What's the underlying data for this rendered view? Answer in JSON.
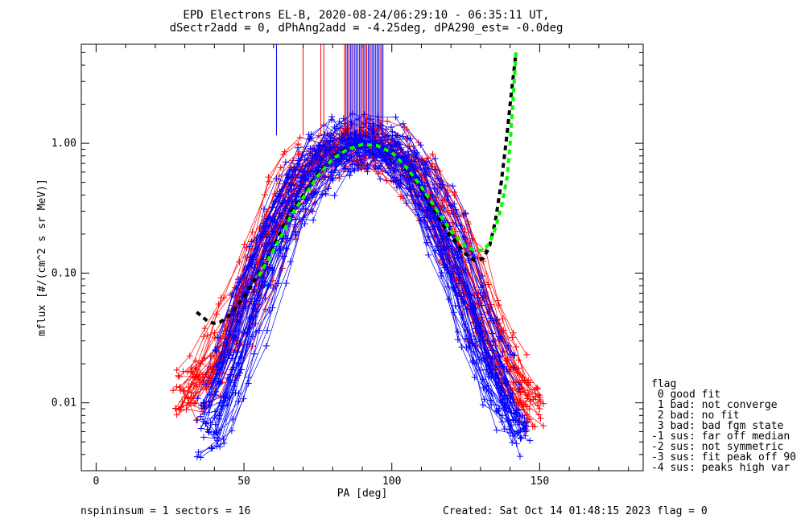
{
  "chart_data": {
    "type": "scatter",
    "title": "EPD Electrons EL-B, 2020-08-24/06:29:10 - 06:35:11 UT,",
    "subtitle": "dSectr2add = 0, dPhAng2add = -4.25deg, dPA290_est=  -0.0deg",
    "xlabel": "PA [deg]",
    "ylabel": "mflux [#/(cm^2 s sr MeV)]",
    "xlim": [
      -5,
      185
    ],
    "ylim": [
      0.003,
      5.8
    ],
    "yscale": "log",
    "grid": false,
    "x_ticks": [
      0,
      50,
      100,
      150
    ],
    "x_tick_labels": [
      "0",
      "50",
      "100",
      "150"
    ],
    "y_ticks": [
      0.01,
      0.1,
      1.0
    ],
    "y_tick_labels": [
      "0.01",
      "0.10",
      "1.00"
    ],
    "colors": {
      "red": "#ff0000",
      "blue": "#0000ff",
      "black": "#000000",
      "green": "#00ff00"
    },
    "series": [
      {
        "color": "red",
        "style": "line+plus",
        "x": [
          30,
          35,
          40,
          45,
          50,
          55,
          60,
          65,
          70,
          75,
          80,
          85,
          90,
          95,
          100,
          105,
          110,
          115,
          120,
          125,
          130,
          135,
          140,
          145,
          150
        ],
        "y": [
          0.011,
          0.015,
          0.02,
          0.03,
          0.06,
          0.12,
          0.22,
          0.38,
          0.55,
          0.72,
          0.85,
          0.95,
          1.0,
          0.97,
          0.9,
          0.75,
          0.55,
          0.38,
          0.22,
          0.12,
          0.06,
          0.03,
          0.018,
          0.012,
          0.009
        ]
      },
      {
        "color": "blue",
        "style": "line+plus",
        "x": [
          38,
          42,
          46,
          50,
          55,
          60,
          65,
          70,
          75,
          80,
          85,
          90,
          95,
          100,
          105,
          110,
          115,
          120,
          125,
          130,
          135,
          140,
          145
        ],
        "y": [
          0.006,
          0.01,
          0.018,
          0.035,
          0.08,
          0.16,
          0.3,
          0.48,
          0.66,
          0.82,
          0.95,
          1.02,
          0.98,
          0.88,
          0.7,
          0.5,
          0.3,
          0.16,
          0.08,
          0.035,
          0.018,
          0.01,
          0.006
        ]
      }
    ],
    "fit_curves": [
      {
        "color": "black",
        "style": "dashed",
        "x": [
          34,
          36,
          38,
          40,
          42,
          44,
          46,
          48,
          50,
          52,
          55,
          58,
          60,
          63,
          66,
          70,
          75,
          80,
          85,
          90,
          95,
          100,
          105,
          110,
          115,
          120,
          125,
          128,
          131,
          133,
          135,
          137,
          139,
          140,
          141,
          142
        ],
        "y": [
          0.05,
          0.046,
          0.042,
          0.041,
          0.042,
          0.045,
          0.05,
          0.057,
          0.066,
          0.077,
          0.1,
          0.13,
          0.16,
          0.22,
          0.3,
          0.4,
          0.58,
          0.78,
          0.92,
          0.98,
          0.96,
          0.84,
          0.64,
          0.44,
          0.29,
          0.19,
          0.14,
          0.125,
          0.13,
          0.16,
          0.25,
          0.5,
          1.2,
          2.0,
          3.2,
          5.0
        ]
      },
      {
        "color": "green",
        "style": "dashed",
        "x": [
          55,
          58,
          60,
          63,
          66,
          70,
          75,
          80,
          85,
          90,
          95,
          100,
          105,
          110,
          115,
          120,
          125,
          128,
          131,
          133,
          135,
          137,
          139,
          140,
          141,
          142
        ],
        "y": [
          0.095,
          0.125,
          0.15,
          0.2,
          0.28,
          0.38,
          0.56,
          0.76,
          0.9,
          0.98,
          0.96,
          0.85,
          0.65,
          0.46,
          0.31,
          0.21,
          0.16,
          0.15,
          0.15,
          0.17,
          0.22,
          0.32,
          0.55,
          1.0,
          2.2,
          5.0
        ]
      }
    ],
    "legend": {
      "title": "flag",
      "placement": "right",
      "entries": [
        " 0 good fit",
        " 1 bad: not converge",
        " 2 bad: no fit",
        " 3 bad: bad fgm state",
        "-1 sus: far off median",
        "-2 sus: not symmetric",
        "-3 sus: fit peak off 90",
        "-4 sus: peaks high var"
      ]
    },
    "footer": {
      "left": "nspininsum =  1  sectors = 16",
      "right": "Created: Sat Oct 14 01:48:15 2023   flag = 0"
    }
  }
}
